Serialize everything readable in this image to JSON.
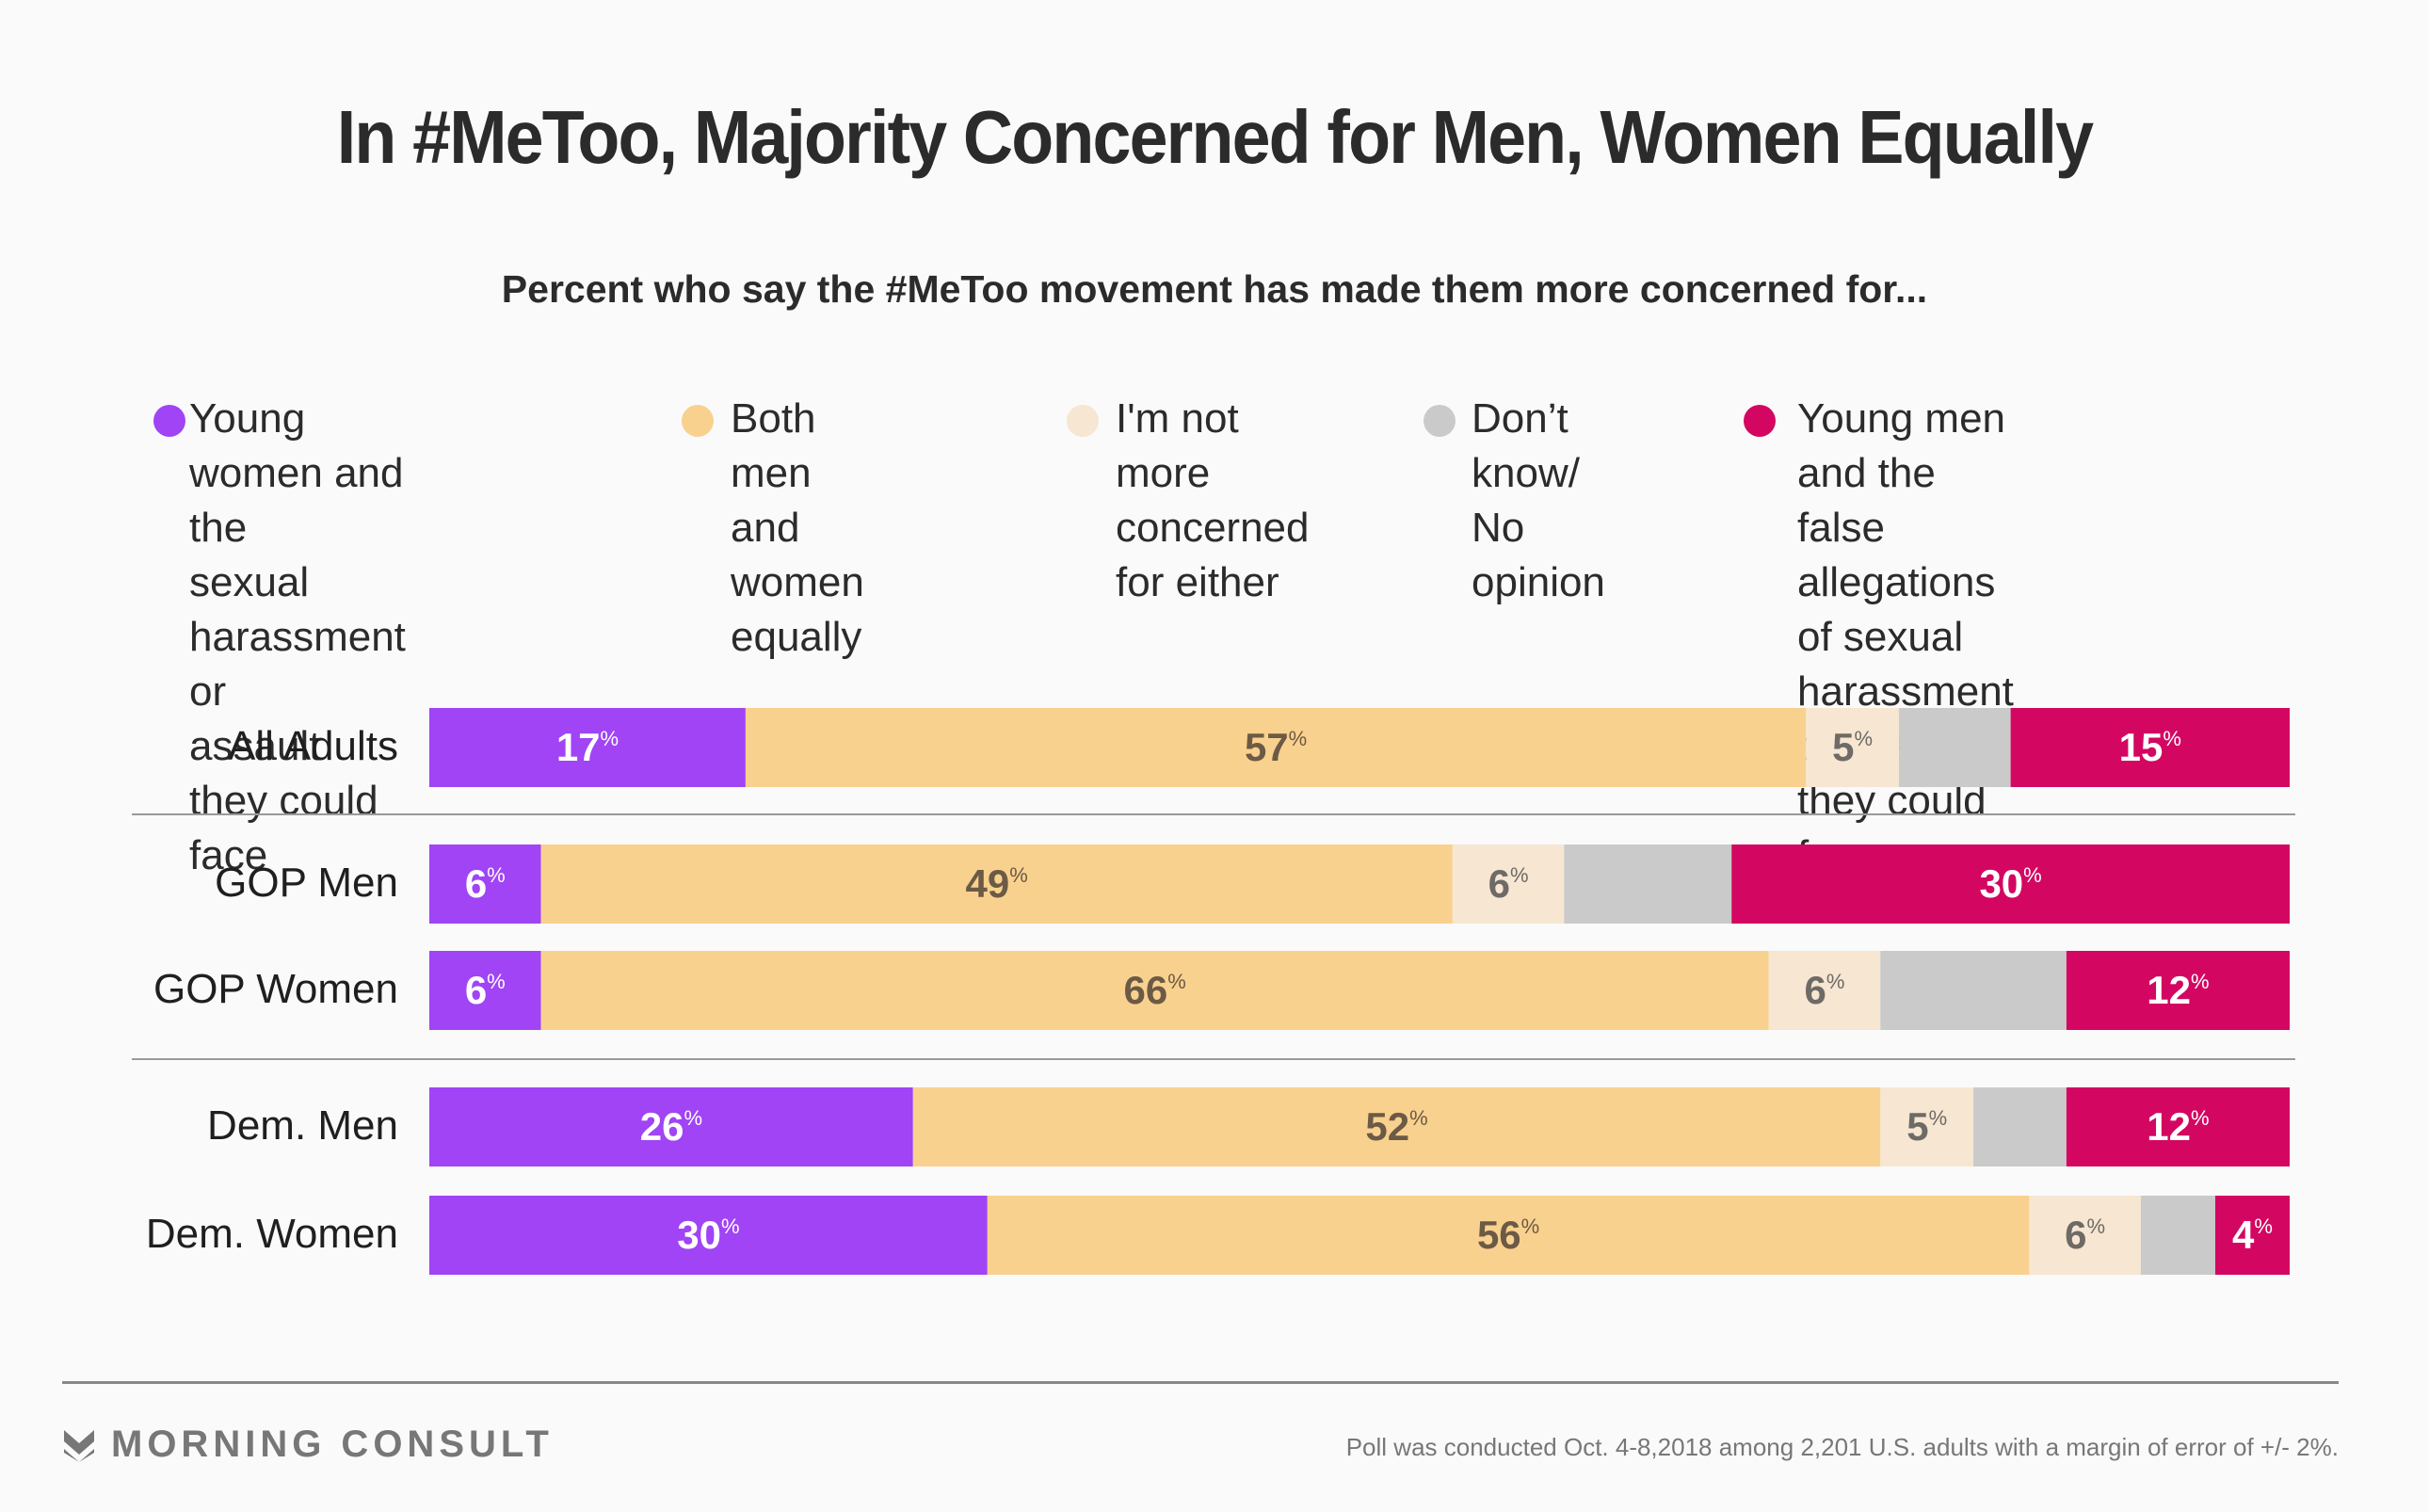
{
  "title": "In #MeToo, Majority Concerned for Men, Women Equally",
  "subtitle": "Percent who say the #MeToo movement has made them more concerned for...",
  "legend": [
    {
      "label": "Young women and the\nsexual harassment or\nassault they could face",
      "color": "#a044f5"
    },
    {
      "label": "Both men and\nwomen equally",
      "color": "#f9d18e"
    },
    {
      "label": "I'm not more\nconcerned\nfor either",
      "color": "#f6e6d2"
    },
    {
      "label": "Don’t know/\nNo opinion",
      "color": "#cacaca"
    },
    {
      "label": "Young men and the false\nallegations of sexual\nharassment or assault\nthey could face",
      "color": "#d30761"
    }
  ],
  "chart_data": {
    "type": "bar",
    "orientation": "horizontal",
    "stacked": true,
    "title": "In #MeToo, Majority Concerned for Men, Women Equally",
    "subtitle": "Percent who say the #MeToo movement has made them more concerned for...",
    "xlabel": "",
    "ylabel": "",
    "xlim": [
      0,
      100
    ],
    "categories": [
      "All Adults",
      "GOP Men",
      "GOP Women",
      "Dem. Men",
      "Dem. Women"
    ],
    "groups": [
      [
        "All Adults"
      ],
      [
        "GOP Men",
        "GOP Women"
      ],
      [
        "Dem. Men",
        "Dem. Women"
      ]
    ],
    "series": [
      {
        "name": "Young women and the sexual harassment or assault they could face",
        "color": "#a044f5",
        "label_color": "#ffffff",
        "values": [
          17,
          6,
          6,
          26,
          30
        ],
        "labeled": true
      },
      {
        "name": "Both men and women equally",
        "color": "#f9d18e",
        "label_color": "#6b5a45",
        "values": [
          57,
          49,
          66,
          52,
          56
        ],
        "labeled": true
      },
      {
        "name": "I'm not more concerned for either",
        "color": "#f6e6d2",
        "label_color": "#6e6a66",
        "values": [
          5,
          6,
          6,
          5,
          6
        ],
        "labeled": true
      },
      {
        "name": "Don’t know/No opinion",
        "color": "#cacaca",
        "label_color": "#6e6a66",
        "values": [
          6,
          9,
          10,
          5,
          4
        ],
        "labeled": false
      },
      {
        "name": "Young men and the false allegations of sexual harassment or assault they could face",
        "color": "#d30761",
        "label_color": "#ffffff",
        "values": [
          15,
          30,
          12,
          12,
          4
        ],
        "labeled": true
      }
    ],
    "value_suffix": "%",
    "grid": false,
    "legend_position": "top"
  },
  "footer": {
    "brand": "MORNING CONSULT",
    "note": "Poll was conducted Oct. 4-8,2018 among 2,201 U.S. adults with a margin of error of +/- 2%."
  }
}
